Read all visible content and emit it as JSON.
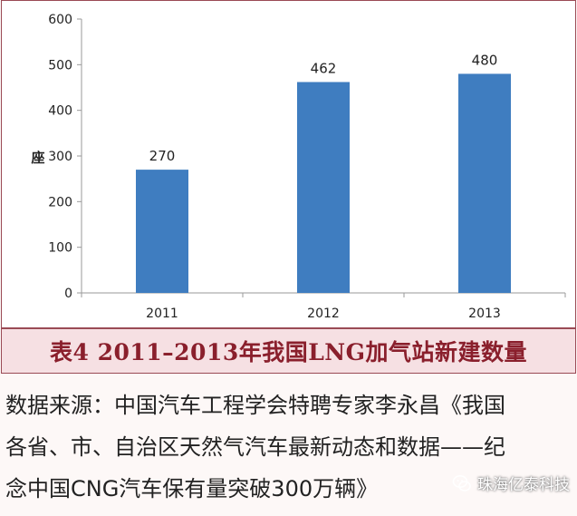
{
  "chart_data": {
    "type": "bar",
    "categories": [
      "2011",
      "2012",
      "2013"
    ],
    "values": [
      270,
      462,
      480
    ],
    "data_labels": [
      "270",
      "462",
      "480"
    ],
    "ylabel": "座",
    "ylim": [
      0,
      600
    ],
    "yticks": [
      "0",
      "100",
      "200",
      "300",
      "400",
      "500",
      "600"
    ],
    "bar_color": "#3f7dc0",
    "grid": false
  },
  "caption": "表4 2011–2013年我国LNG加气站新建数量",
  "source_lines": [
    "数据来源：中国汽车工程学会特聘专家李永昌《我国",
    "各省、市、自治区天然气汽车最新动态和数据——纪",
    "念中国CNG汽车保有量突破300万辆》"
  ],
  "watermark": {
    "text": "珠海亿泰科技",
    "icon": "wechat-icon"
  },
  "colors": {
    "frame": "#9a4a55",
    "caption_bg": "#f6e0e3",
    "caption_text": "#8a1f2c"
  }
}
